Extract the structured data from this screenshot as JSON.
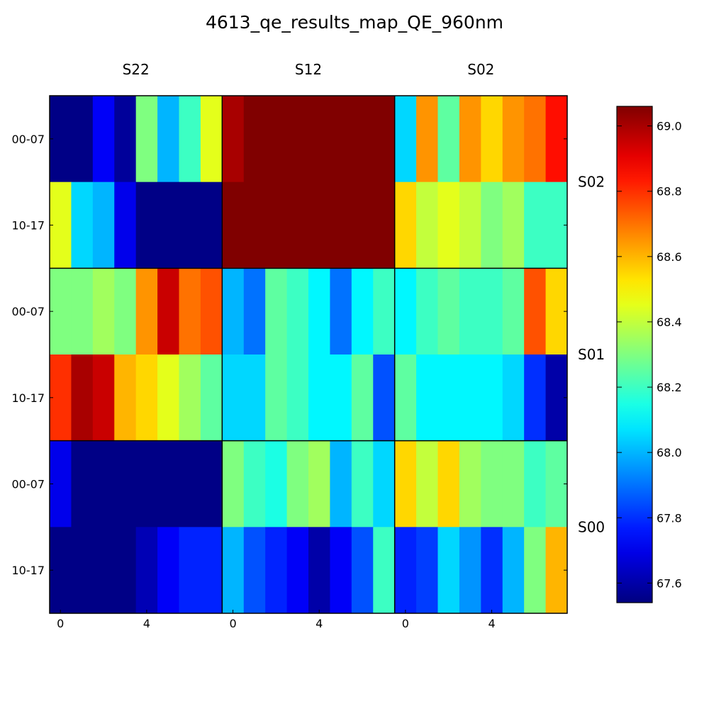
{
  "chart_data": {
    "type": "heatmap",
    "title": "4613_qe_results_map_QE_960nm",
    "column_groups": [
      "S22",
      "S12",
      "S02"
    ],
    "row_groups": [
      "S02",
      "S01",
      "S00"
    ],
    "row_labels": [
      "00-07",
      "10-17"
    ],
    "x_tick_labels": [
      "0",
      "4"
    ],
    "colorbar": {
      "min": 67.54,
      "max": 69.06,
      "ticks": [
        "67.6",
        "67.8",
        "68.0",
        "68.2",
        "68.4",
        "68.6",
        "68.8",
        "69.0"
      ],
      "colormap": "jet"
    },
    "rows": [
      {
        "row_group": "S02",
        "row_label": "00-07",
        "values": [
          67.55,
          67.55,
          67.72,
          67.58,
          68.3,
          68.0,
          68.2,
          68.45,
          69.0,
          69.06,
          69.06,
          69.06,
          69.06,
          69.06,
          69.06,
          69.06,
          68.05,
          68.65,
          68.25,
          68.65,
          68.55,
          68.65,
          68.7,
          68.85
        ]
      },
      {
        "row_group": "S02",
        "row_label": "10-17",
        "values": [
          68.45,
          68.05,
          68.0,
          67.7,
          67.55,
          67.55,
          67.55,
          67.55,
          69.06,
          69.06,
          69.06,
          69.06,
          69.06,
          69.06,
          69.06,
          69.06,
          68.55,
          68.4,
          68.45,
          68.4,
          68.3,
          68.35,
          68.2,
          68.2
        ]
      },
      {
        "row_group": "S01",
        "row_label": "00-07",
        "values": [
          68.3,
          68.3,
          68.35,
          68.3,
          68.65,
          68.95,
          68.7,
          68.75,
          68.0,
          67.9,
          68.25,
          68.2,
          68.1,
          67.9,
          68.1,
          68.2,
          68.1,
          68.2,
          68.25,
          68.2,
          68.2,
          68.25,
          68.75,
          68.55
        ]
      },
      {
        "row_group": "S01",
        "row_label": "10-17",
        "values": [
          68.8,
          69.0,
          68.95,
          68.6,
          68.55,
          68.45,
          68.35,
          68.25,
          68.05,
          68.05,
          68.25,
          68.2,
          68.1,
          68.1,
          68.25,
          67.85,
          68.25,
          68.1,
          68.1,
          68.1,
          68.1,
          68.05,
          67.8,
          67.6
        ]
      },
      {
        "row_group": "S00",
        "row_label": "00-07",
        "values": [
          67.7,
          67.55,
          67.55,
          67.55,
          67.55,
          67.55,
          67.55,
          67.55,
          68.3,
          68.2,
          68.15,
          68.3,
          68.35,
          68.0,
          68.2,
          68.05,
          68.55,
          68.4,
          68.55,
          68.35,
          68.3,
          68.3,
          68.2,
          68.25
        ]
      },
      {
        "row_group": "S00",
        "row_label": "10-17",
        "values": [
          67.55,
          67.55,
          67.55,
          67.55,
          67.62,
          67.72,
          67.78,
          67.78,
          68.0,
          67.85,
          67.78,
          67.72,
          67.6,
          67.72,
          67.85,
          68.2,
          67.78,
          67.82,
          68.05,
          67.95,
          67.8,
          68.0,
          68.3,
          68.6
        ]
      }
    ]
  }
}
